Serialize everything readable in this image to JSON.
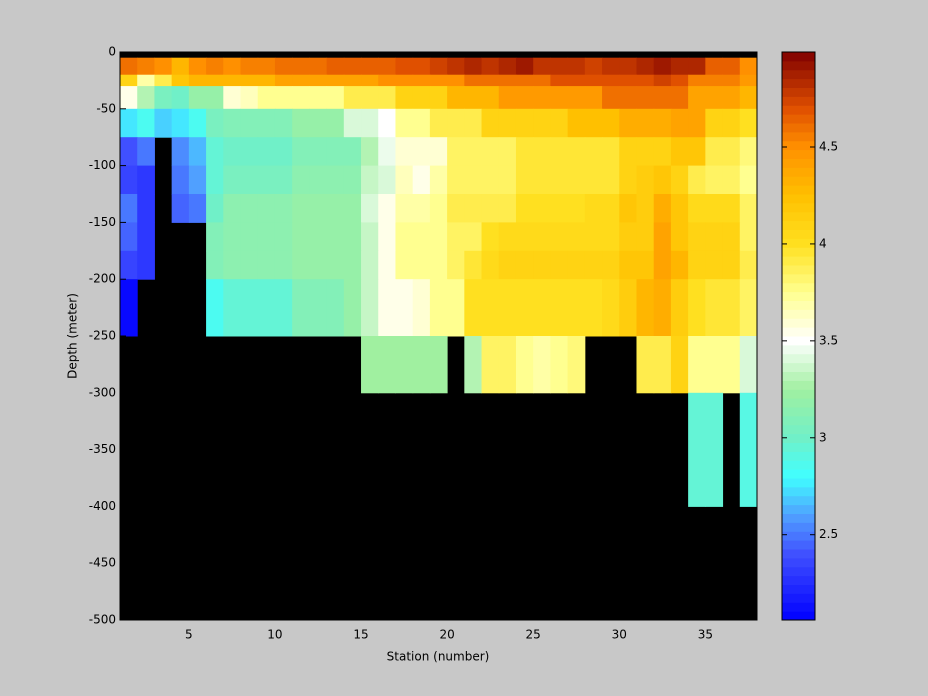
{
  "chart_data": {
    "type": "heatmap",
    "x_label": "Station (number)",
    "y_label": "Depth (meter)",
    "xlim": [
      1,
      38
    ],
    "xticks": [
      5,
      10,
      15,
      20,
      25,
      30,
      35
    ],
    "ylim": [
      -500,
      0
    ],
    "yticks": [
      0,
      -50,
      -100,
      -150,
      -200,
      -250,
      -300,
      -350,
      -400,
      -450,
      -500
    ],
    "y_edges": [
      0,
      -5,
      -20,
      -30,
      -50,
      -75,
      -100,
      -125,
      -150,
      -175,
      -200,
      -250,
      -300,
      -400,
      -500
    ],
    "clim": [
      2.06,
      4.99
    ],
    "cticks": [
      2.5,
      3,
      3.5,
      4,
      4.5
    ],
    "missing_color": "#000000",
    "colormap": [
      {
        "value": 2.06,
        "color": "#0000ff"
      },
      {
        "value": 2.4,
        "color": "#4050ff"
      },
      {
        "value": 2.6,
        "color": "#50a0ff"
      },
      {
        "value": 2.8,
        "color": "#40ffff"
      },
      {
        "value": 3.0,
        "color": "#70f0c8"
      },
      {
        "value": 3.25,
        "color": "#a0f0a0"
      },
      {
        "value": 3.5,
        "color": "#ffffff"
      },
      {
        "value": 3.75,
        "color": "#ffff90"
      },
      {
        "value": 4.0,
        "color": "#ffe020"
      },
      {
        "value": 4.25,
        "color": "#ffc000"
      },
      {
        "value": 4.5,
        "color": "#ff9000"
      },
      {
        "value": 4.7,
        "color": "#e05000"
      },
      {
        "value": 4.99,
        "color": "#800000"
      }
    ],
    "values": [
      [
        null,
        null,
        null,
        null,
        null,
        null,
        null,
        null,
        null,
        null,
        null,
        null,
        null,
        null,
        null,
        null,
        null,
        null,
        null,
        null,
        null,
        null,
        null,
        null,
        null,
        null,
        null,
        null,
        null,
        null,
        null,
        null,
        null,
        null,
        null,
        null,
        null
      ],
      [
        4.6,
        4.55,
        4.5,
        4.3,
        4.5,
        4.55,
        4.5,
        4.55,
        4.55,
        4.6,
        4.6,
        4.6,
        4.65,
        4.65,
        4.65,
        4.65,
        4.7,
        4.7,
        4.75,
        4.8,
        4.85,
        4.8,
        4.85,
        4.9,
        4.8,
        4.8,
        4.8,
        4.75,
        4.8,
        4.8,
        4.85,
        4.9,
        4.85,
        4.85,
        4.65,
        4.65,
        4.5
      ],
      [
        4.1,
        3.7,
        3.9,
        4.2,
        4.3,
        4.3,
        4.3,
        4.3,
        4.3,
        4.4,
        4.4,
        4.4,
        4.4,
        4.4,
        4.4,
        4.5,
        4.5,
        4.5,
        4.5,
        4.5,
        4.6,
        4.6,
        4.6,
        4.6,
        4.6,
        4.7,
        4.7,
        4.7,
        4.7,
        4.7,
        4.7,
        4.75,
        4.7,
        4.55,
        4.55,
        4.55,
        4.45
      ],
      [
        3.55,
        3.3,
        3.05,
        3.0,
        3.2,
        3.2,
        3.6,
        3.65,
        3.75,
        3.75,
        3.75,
        3.75,
        3.75,
        3.9,
        3.9,
        3.9,
        4.1,
        4.1,
        4.1,
        4.3,
        4.3,
        4.3,
        4.45,
        4.45,
        4.45,
        4.45,
        4.45,
        4.45,
        4.6,
        4.6,
        4.6,
        4.6,
        4.6,
        4.4,
        4.4,
        4.4,
        4.3
      ],
      [
        2.75,
        2.85,
        2.7,
        2.75,
        2.85,
        3.05,
        3.1,
        3.1,
        3.1,
        3.1,
        3.2,
        3.2,
        3.2,
        3.4,
        3.4,
        3.5,
        3.75,
        3.75,
        3.9,
        3.9,
        3.9,
        4.1,
        4.1,
        4.1,
        4.1,
        4.1,
        4.25,
        4.25,
        4.25,
        4.35,
        4.35,
        4.35,
        4.4,
        4.4,
        4.1,
        4.1,
        4.0
      ],
      [
        2.4,
        2.5,
        null,
        2.55,
        2.65,
        2.95,
        3.0,
        3.0,
        3.0,
        3.0,
        3.1,
        3.1,
        3.1,
        3.1,
        3.3,
        3.45,
        3.6,
        3.6,
        3.6,
        3.85,
        3.85,
        3.85,
        3.85,
        3.95,
        3.95,
        3.95,
        3.95,
        3.95,
        3.95,
        4.1,
        4.1,
        4.1,
        4.2,
        4.2,
        3.9,
        3.9,
        3.8
      ],
      [
        2.35,
        2.3,
        null,
        2.5,
        2.6,
        2.95,
        3.05,
        3.05,
        3.05,
        3.05,
        3.15,
        3.15,
        3.15,
        3.15,
        3.35,
        3.4,
        3.65,
        3.55,
        3.7,
        3.85,
        3.85,
        3.85,
        3.85,
        3.95,
        3.95,
        3.95,
        3.95,
        3.95,
        3.95,
        4.1,
        4.15,
        4.2,
        4.1,
        3.9,
        3.85,
        3.85,
        3.75
      ],
      [
        2.5,
        2.3,
        null,
        2.45,
        2.5,
        3.0,
        3.15,
        3.15,
        3.15,
        3.15,
        3.2,
        3.2,
        3.2,
        3.2,
        3.4,
        3.55,
        3.7,
        3.7,
        3.75,
        3.9,
        3.9,
        3.9,
        3.9,
        4.0,
        4.0,
        4.0,
        4.0,
        4.05,
        4.05,
        4.2,
        4.15,
        4.35,
        4.2,
        4.05,
        4.05,
        4.05,
        3.85
      ],
      [
        2.45,
        2.3,
        null,
        null,
        null,
        3.1,
        3.15,
        3.15,
        3.15,
        3.15,
        3.2,
        3.2,
        3.2,
        3.2,
        3.35,
        3.55,
        3.75,
        3.75,
        3.75,
        3.85,
        3.85,
        4.0,
        4.05,
        4.05,
        4.05,
        4.05,
        4.05,
        4.05,
        4.05,
        4.15,
        4.15,
        4.4,
        4.2,
        4.1,
        4.1,
        4.1,
        3.85
      ],
      [
        2.35,
        2.3,
        null,
        null,
        null,
        3.1,
        3.15,
        3.15,
        3.15,
        3.15,
        3.2,
        3.2,
        3.2,
        3.2,
        3.35,
        3.55,
        3.75,
        3.75,
        3.75,
        3.85,
        3.95,
        4.05,
        4.1,
        4.1,
        4.1,
        4.1,
        4.1,
        4.1,
        4.1,
        4.2,
        4.2,
        4.4,
        4.3,
        4.1,
        4.1,
        4.1,
        3.9
      ],
      [
        2.1,
        null,
        null,
        null,
        null,
        2.85,
        2.95,
        2.95,
        2.95,
        2.95,
        3.1,
        3.1,
        3.1,
        3.2,
        3.35,
        3.55,
        3.55,
        3.6,
        3.75,
        3.75,
        4.0,
        4.0,
        4.0,
        4.0,
        4.0,
        4.0,
        4.0,
        4.0,
        4.05,
        4.15,
        4.3,
        4.35,
        4.15,
        4.0,
        3.95,
        3.95,
        3.85
      ],
      [
        null,
        null,
        null,
        null,
        null,
        null,
        null,
        null,
        null,
        null,
        null,
        null,
        null,
        null,
        3.25,
        3.25,
        3.25,
        3.25,
        3.25,
        null,
        3.3,
        3.85,
        3.85,
        3.75,
        3.7,
        3.75,
        3.8,
        null,
        null,
        null,
        3.9,
        3.9,
        4.1,
        3.75,
        3.75,
        3.75,
        3.4
      ],
      [
        null,
        null,
        null,
        null,
        null,
        null,
        null,
        null,
        null,
        null,
        null,
        null,
        null,
        null,
        null,
        null,
        null,
        null,
        null,
        null,
        null,
        null,
        null,
        null,
        null,
        null,
        null,
        null,
        null,
        null,
        null,
        null,
        null,
        2.95,
        2.95,
        null,
        2.9
      ],
      [
        null,
        null,
        null,
        null,
        null,
        null,
        null,
        null,
        null,
        null,
        null,
        null,
        null,
        null,
        null,
        null,
        null,
        null,
        null,
        null,
        null,
        null,
        null,
        null,
        null,
        null,
        null,
        null,
        null,
        null,
        null,
        null,
        null,
        null,
        null,
        null,
        null
      ]
    ]
  }
}
